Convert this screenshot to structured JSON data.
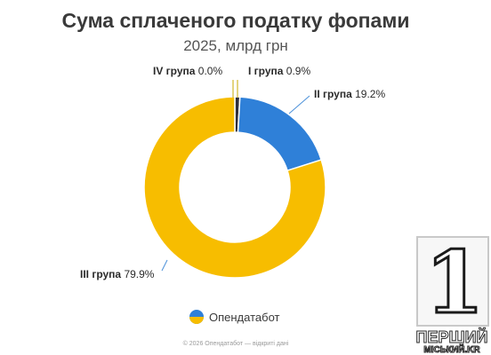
{
  "chart_data": {
    "type": "pie",
    "variant": "donut",
    "title": "Сума сплаченого податку фопами",
    "subtitle": "2025, млрд грн",
    "slices": [
      {
        "label": "I група",
        "value_text": "0.9%",
        "value": 0.9,
        "color": "#2e2e3a"
      },
      {
        "label": "II група",
        "value_text": "19.2%",
        "value": 19.2,
        "color": "#2f80d8"
      },
      {
        "label": "III група",
        "value_text": "79.9%",
        "value": 79.9,
        "color": "#f7bd00"
      },
      {
        "label": "IV група",
        "value_text": "0.0%",
        "value": 0.0,
        "color": "#8a8a8a"
      }
    ],
    "start_angle_deg": 0,
    "direction": "clockwise",
    "colors": {
      "leader_line": "#4a90d9"
    }
  },
  "brand": {
    "name": "Опендатабот"
  },
  "copyright": "© 2026 Опендатабот — відкриті дані",
  "watermark": {
    "digit": "1",
    "line1": "ПЕРШИЙ",
    "line2": "МІСЬКИЙ.KR"
  }
}
